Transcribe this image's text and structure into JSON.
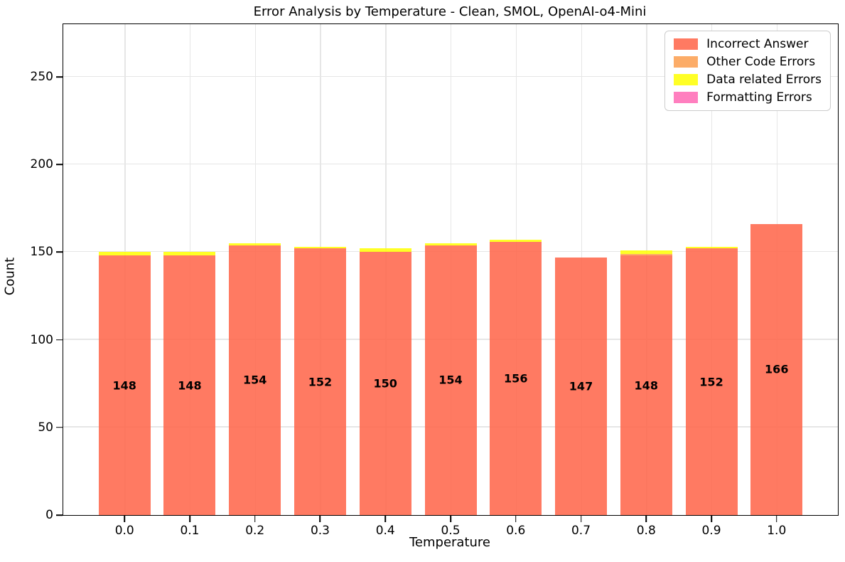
{
  "chart_data": {
    "type": "bar",
    "stacked": true,
    "title": "Error Analysis by Temperature - Clean, SMOL, OpenAI-o4-Mini",
    "xlabel": "Temperature",
    "ylabel": "Count",
    "categories": [
      "0.0",
      "0.1",
      "0.2",
      "0.3",
      "0.4",
      "0.5",
      "0.6",
      "0.7",
      "0.8",
      "0.9",
      "1.0"
    ],
    "series": [
      {
        "name": "Incorrect Answer",
        "color": "#ff6347",
        "values": [
          148,
          148,
          154,
          152,
          150,
          154,
          156,
          147,
          148,
          152,
          166
        ]
      },
      {
        "name": "Other Code Errors",
        "color": "#fb9d4d",
        "values": [
          0,
          0,
          0,
          0,
          0,
          0,
          0,
          0,
          1,
          0,
          0
        ]
      },
      {
        "name": "Data related Errors",
        "color": "#ffff00",
        "values": [
          2,
          2,
          1,
          1,
          2,
          1,
          1,
          0,
          2,
          1,
          0
        ]
      },
      {
        "name": "Formatting Errors",
        "color": "#ff69b4",
        "values": [
          0,
          0,
          0,
          0,
          0,
          0,
          0,
          0,
          0,
          0,
          0
        ]
      }
    ],
    "bar_labels": [
      "148",
      "148",
      "154",
      "152",
      "150",
      "154",
      "156",
      "147",
      "148",
      "152",
      "166"
    ],
    "ylim": [
      0,
      280
    ],
    "yticks": [
      0,
      50,
      100,
      150,
      200,
      250
    ],
    "grid": true,
    "legend_position": "upper right",
    "bar_alpha": 0.85,
    "grid_color": "#e6e6e6",
    "spine_color": "#000000"
  }
}
